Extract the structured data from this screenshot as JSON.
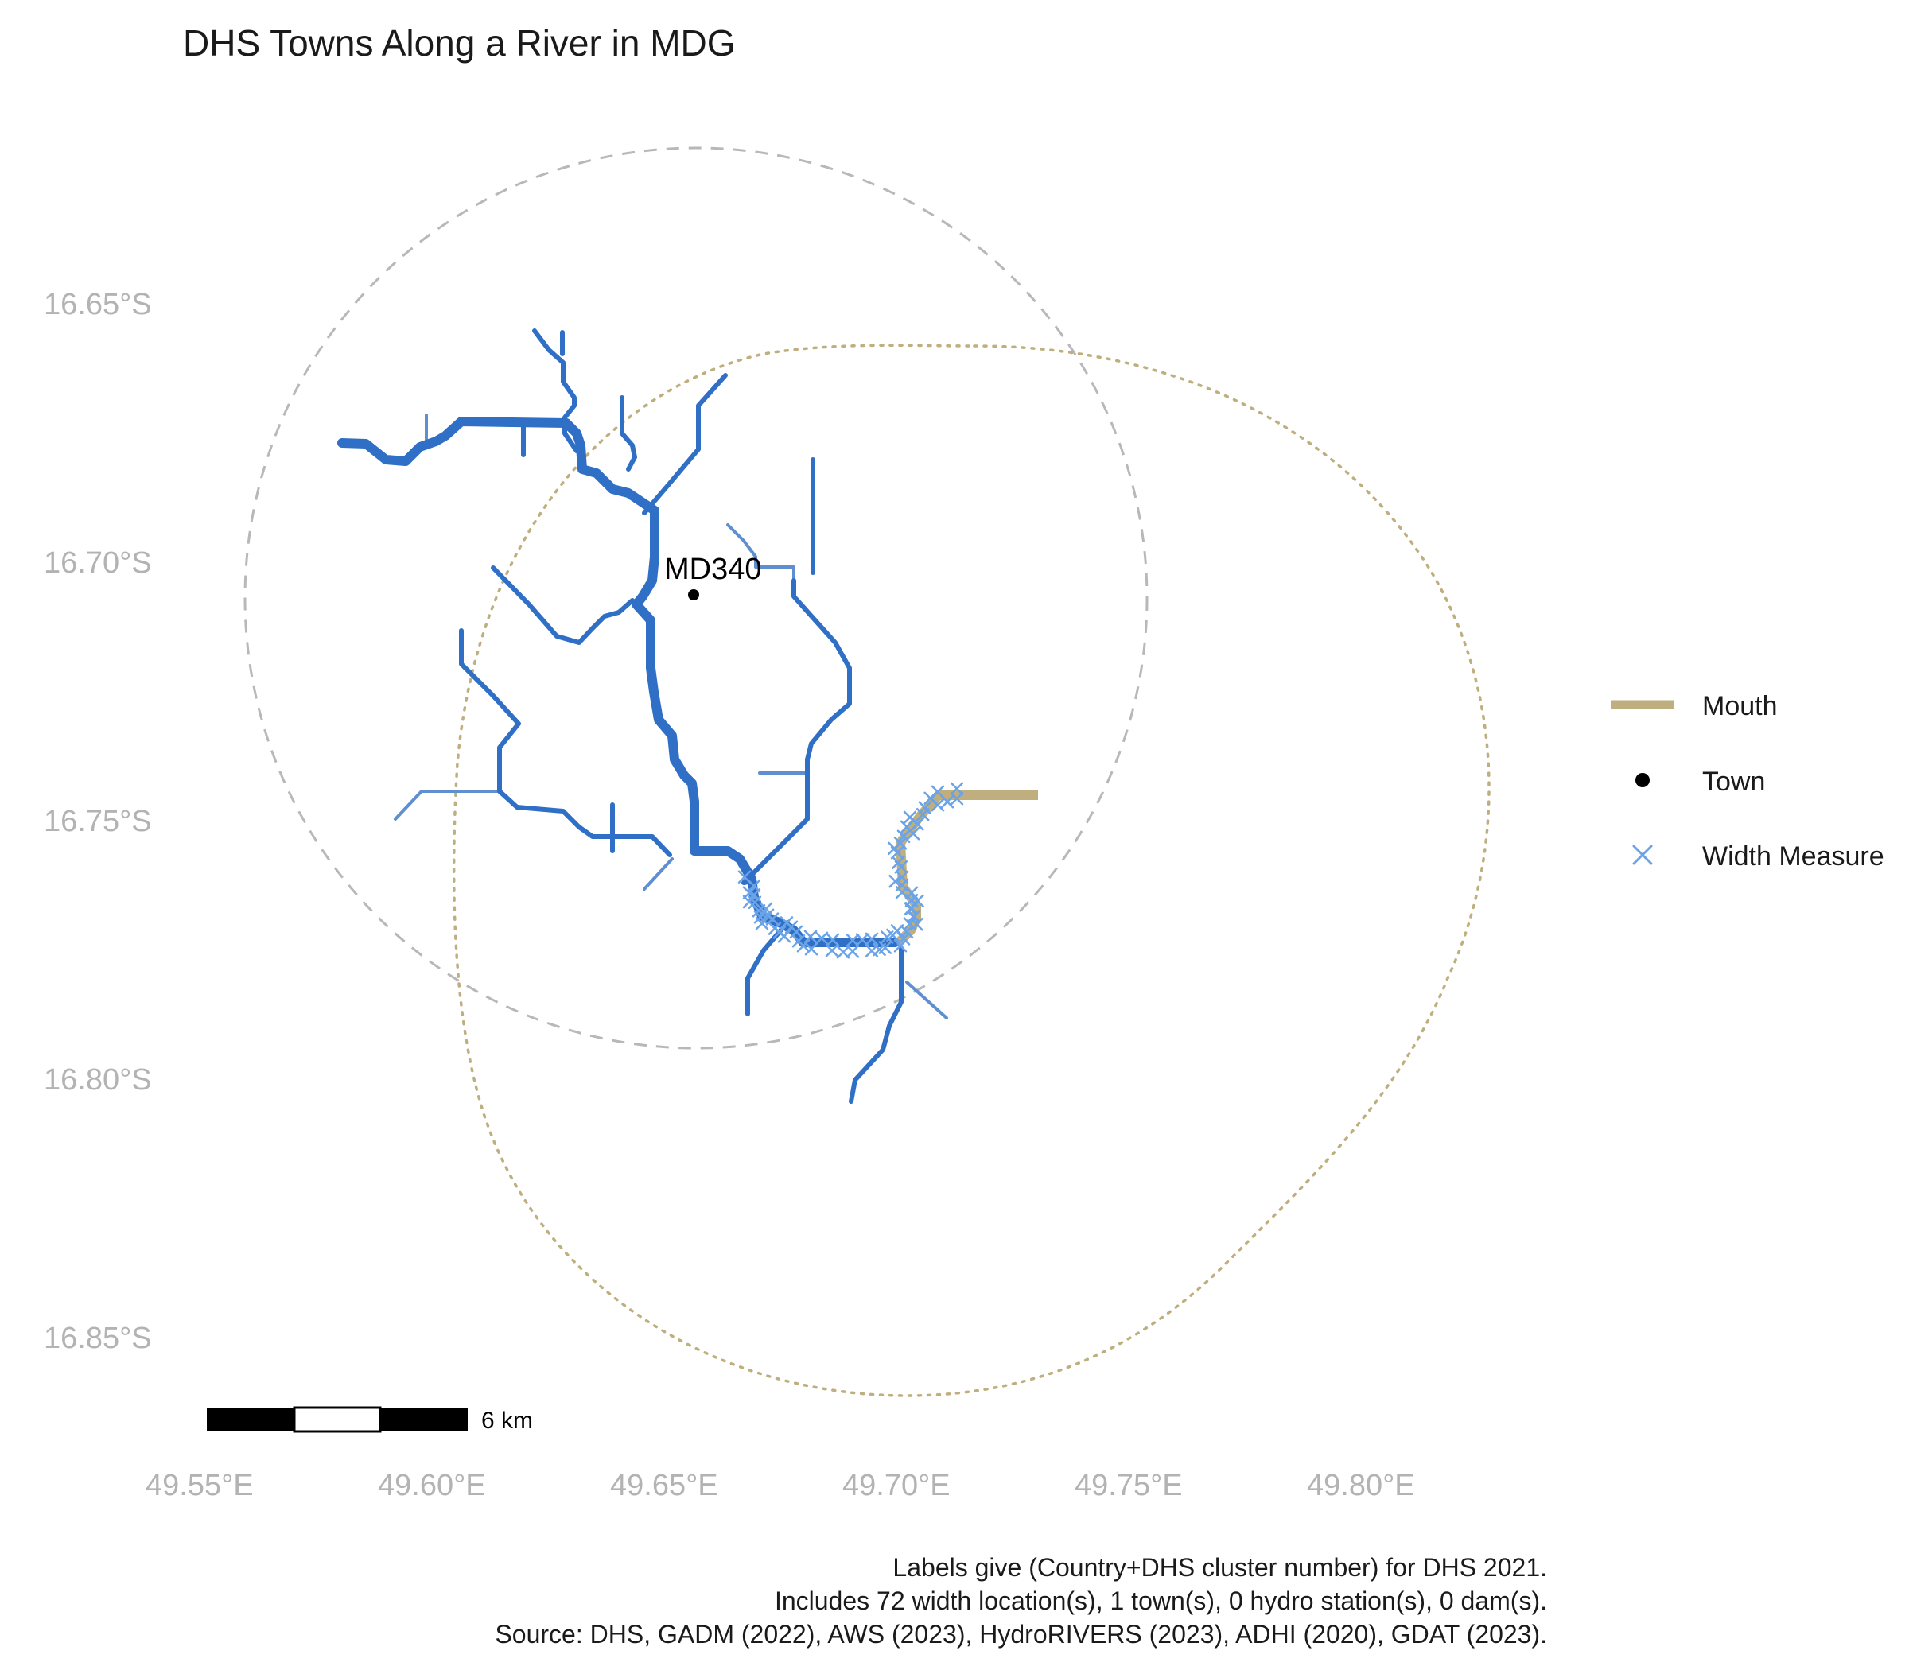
{
  "title": "DHS Towns Along a River in MDG",
  "axes": {
    "y_ticks": [
      "16.65°S",
      "16.70°S",
      "16.75°S",
      "16.80°S",
      "16.85°S"
    ],
    "x_ticks": [
      "49.55°E",
      "49.60°E",
      "49.65°E",
      "49.70°E",
      "49.75°E",
      "49.80°E"
    ]
  },
  "town": {
    "label": "MD340",
    "lon": 49.6545,
    "lat": -16.7055
  },
  "legend": {
    "items": [
      {
        "key": "mouth",
        "label": "Mouth",
        "color": "#bfae7e"
      },
      {
        "key": "town",
        "label": "Town",
        "color": "#000000"
      },
      {
        "key": "width",
        "label": "Width Measure",
        "color": "#6aa3e8"
      }
    ]
  },
  "scale_bar": {
    "label": "6 km"
  },
  "caption": [
    "Labels give (Country+DHS cluster number) for DHS 2021.",
    "Includes 72 width location(s), 1 town(s), 0 hydro station(s), 0 dam(s).",
    "Source: DHS, GADM (2022), AWS (2023), HydroRIVERS (2023), ADHI (2020), GDAT (2023)."
  ],
  "colors": {
    "river": "#2f6fc6",
    "river_light": "#5f8fd0",
    "mouth": "#bfae7e",
    "width_measure": "#6aa3e8",
    "town_buffer": "#b8b8b8",
    "mouth_buffer": "#bfae7e"
  }
}
